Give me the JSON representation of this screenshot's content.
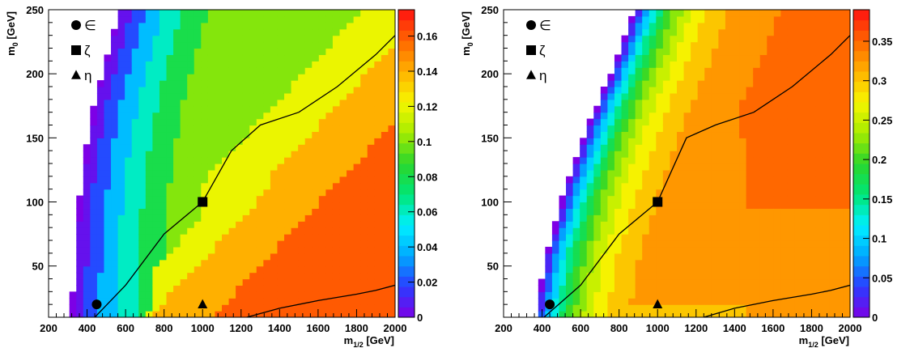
{
  "chart_data": [
    {
      "type": "heatmap",
      "title": "",
      "xlabel": "m",
      "xlabel_sub": "1/2",
      "xlabel_unit": " [GeV]",
      "ylabel": "m",
      "ylabel_sub": "0",
      "ylabel_unit": " [GeV]",
      "xlim": [
        200,
        2000
      ],
      "ylim": [
        10,
        250
      ],
      "x_ticks": [
        200,
        400,
        600,
        800,
        1000,
        1200,
        1400,
        1600,
        1800,
        2000
      ],
      "y_ticks": [
        50,
        100,
        150,
        200,
        250
      ],
      "colorbar": {
        "range": [
          0,
          0.175
        ],
        "ticks": [
          0,
          0.02,
          0.04,
          0.06,
          0.08,
          0.1,
          0.12,
          0.14,
          0.16
        ],
        "tick_labels": [
          "0",
          "0.02",
          "0.04",
          "0.06",
          "0.08",
          "0.1",
          "0.12",
          "0.14",
          "0.16"
        ]
      },
      "grid": false,
      "edge_boundary": [
        [
          320,
          10
        ],
        [
          340,
          75
        ],
        [
          380,
          130
        ],
        [
          440,
          180
        ],
        [
          530,
          230
        ],
        [
          565,
          250
        ]
      ],
      "upper_contour": [
        [
          440,
          10
        ],
        [
          600,
          35
        ],
        [
          800,
          75
        ],
        [
          1000,
          100
        ],
        [
          1150,
          140
        ],
        [
          1300,
          160
        ],
        [
          1500,
          170
        ],
        [
          1700,
          190
        ],
        [
          1900,
          215
        ],
        [
          2000,
          230
        ]
      ],
      "lower_contour": [
        [
          1230,
          10
        ],
        [
          1400,
          17
        ],
        [
          1600,
          23
        ],
        [
          1800,
          28
        ],
        [
          1900,
          31
        ],
        [
          2000,
          35
        ]
      ],
      "markers": [
        {
          "shape": "circle",
          "x": 450,
          "y": 20
        },
        {
          "shape": "square",
          "x": 1000,
          "y": 100
        },
        {
          "shape": "triangle",
          "x": 1000,
          "y": 20
        }
      ],
      "legend": [
        {
          "shape": "circle",
          "label": "∈"
        },
        {
          "shape": "square",
          "label": "ζ"
        },
        {
          "shape": "triangle",
          "label": "η"
        }
      ],
      "legend_placement": "top-left",
      "value_model": {
        "form": "ridge",
        "peak": 0.17,
        "plateau_slope": 0.115,
        "levels": [
          0,
          0.005,
          0.02,
          0.04,
          0.06,
          0.08,
          0.1,
          0.12,
          0.14,
          0.16
        ]
      }
    },
    {
      "type": "heatmap",
      "title": "",
      "xlabel": "m",
      "xlabel_sub": "1/2",
      "xlabel_unit": " [GeV]",
      "ylabel": "m",
      "ylabel_sub": "0",
      "ylabel_unit": " [GeV]",
      "xlim": [
        200,
        2000
      ],
      "ylim": [
        10,
        250
      ],
      "x_ticks": [
        200,
        400,
        600,
        800,
        1000,
        1200,
        1400,
        1600,
        1800,
        2000
      ],
      "y_ticks": [
        50,
        100,
        150,
        200,
        250
      ],
      "colorbar": {
        "range": [
          0,
          0.39
        ],
        "ticks": [
          0,
          0.05,
          0.1,
          0.15,
          0.2,
          0.25,
          0.3,
          0.35
        ],
        "tick_labels": [
          "0",
          "0.05",
          "0.1",
          "0.15",
          "0.2",
          "0.25",
          "0.3",
          "0.35"
        ]
      },
      "grid": false,
      "edge_boundary": [
        [
          360,
          10
        ],
        [
          420,
          60
        ],
        [
          520,
          110
        ],
        [
          640,
          160
        ],
        [
          780,
          210
        ],
        [
          880,
          250
        ]
      ],
      "upper_contour": [
        [
          410,
          10
        ],
        [
          600,
          35
        ],
        [
          800,
          75
        ],
        [
          1000,
          100
        ],
        [
          1150,
          150
        ],
        [
          1300,
          160
        ],
        [
          1500,
          170
        ],
        [
          1700,
          190
        ],
        [
          1900,
          215
        ],
        [
          2000,
          230
        ]
      ],
      "lower_contour": [
        [
          1240,
          10
        ],
        [
          1400,
          17
        ],
        [
          1600,
          23
        ],
        [
          1800,
          28
        ],
        [
          1900,
          31
        ],
        [
          2000,
          35
        ]
      ],
      "markers": [
        {
          "shape": "circle",
          "x": 440,
          "y": 20
        },
        {
          "shape": "square",
          "x": 1000,
          "y": 100
        },
        {
          "shape": "triangle",
          "x": 1000,
          "y": 20
        }
      ],
      "legend": [
        {
          "shape": "circle",
          "label": "∈"
        },
        {
          "shape": "square",
          "label": "ζ"
        },
        {
          "shape": "triangle",
          "label": "η"
        }
      ],
      "legend_placement": "top-left",
      "value_model": {
        "form": "plateau",
        "peak": 0.37,
        "plateau_value": 0.33,
        "levels": [
          0,
          0.025,
          0.05,
          0.075,
          0.1,
          0.125,
          0.15,
          0.175,
          0.2,
          0.225,
          0.25,
          0.275,
          0.3,
          0.325,
          0.35
        ]
      }
    }
  ]
}
